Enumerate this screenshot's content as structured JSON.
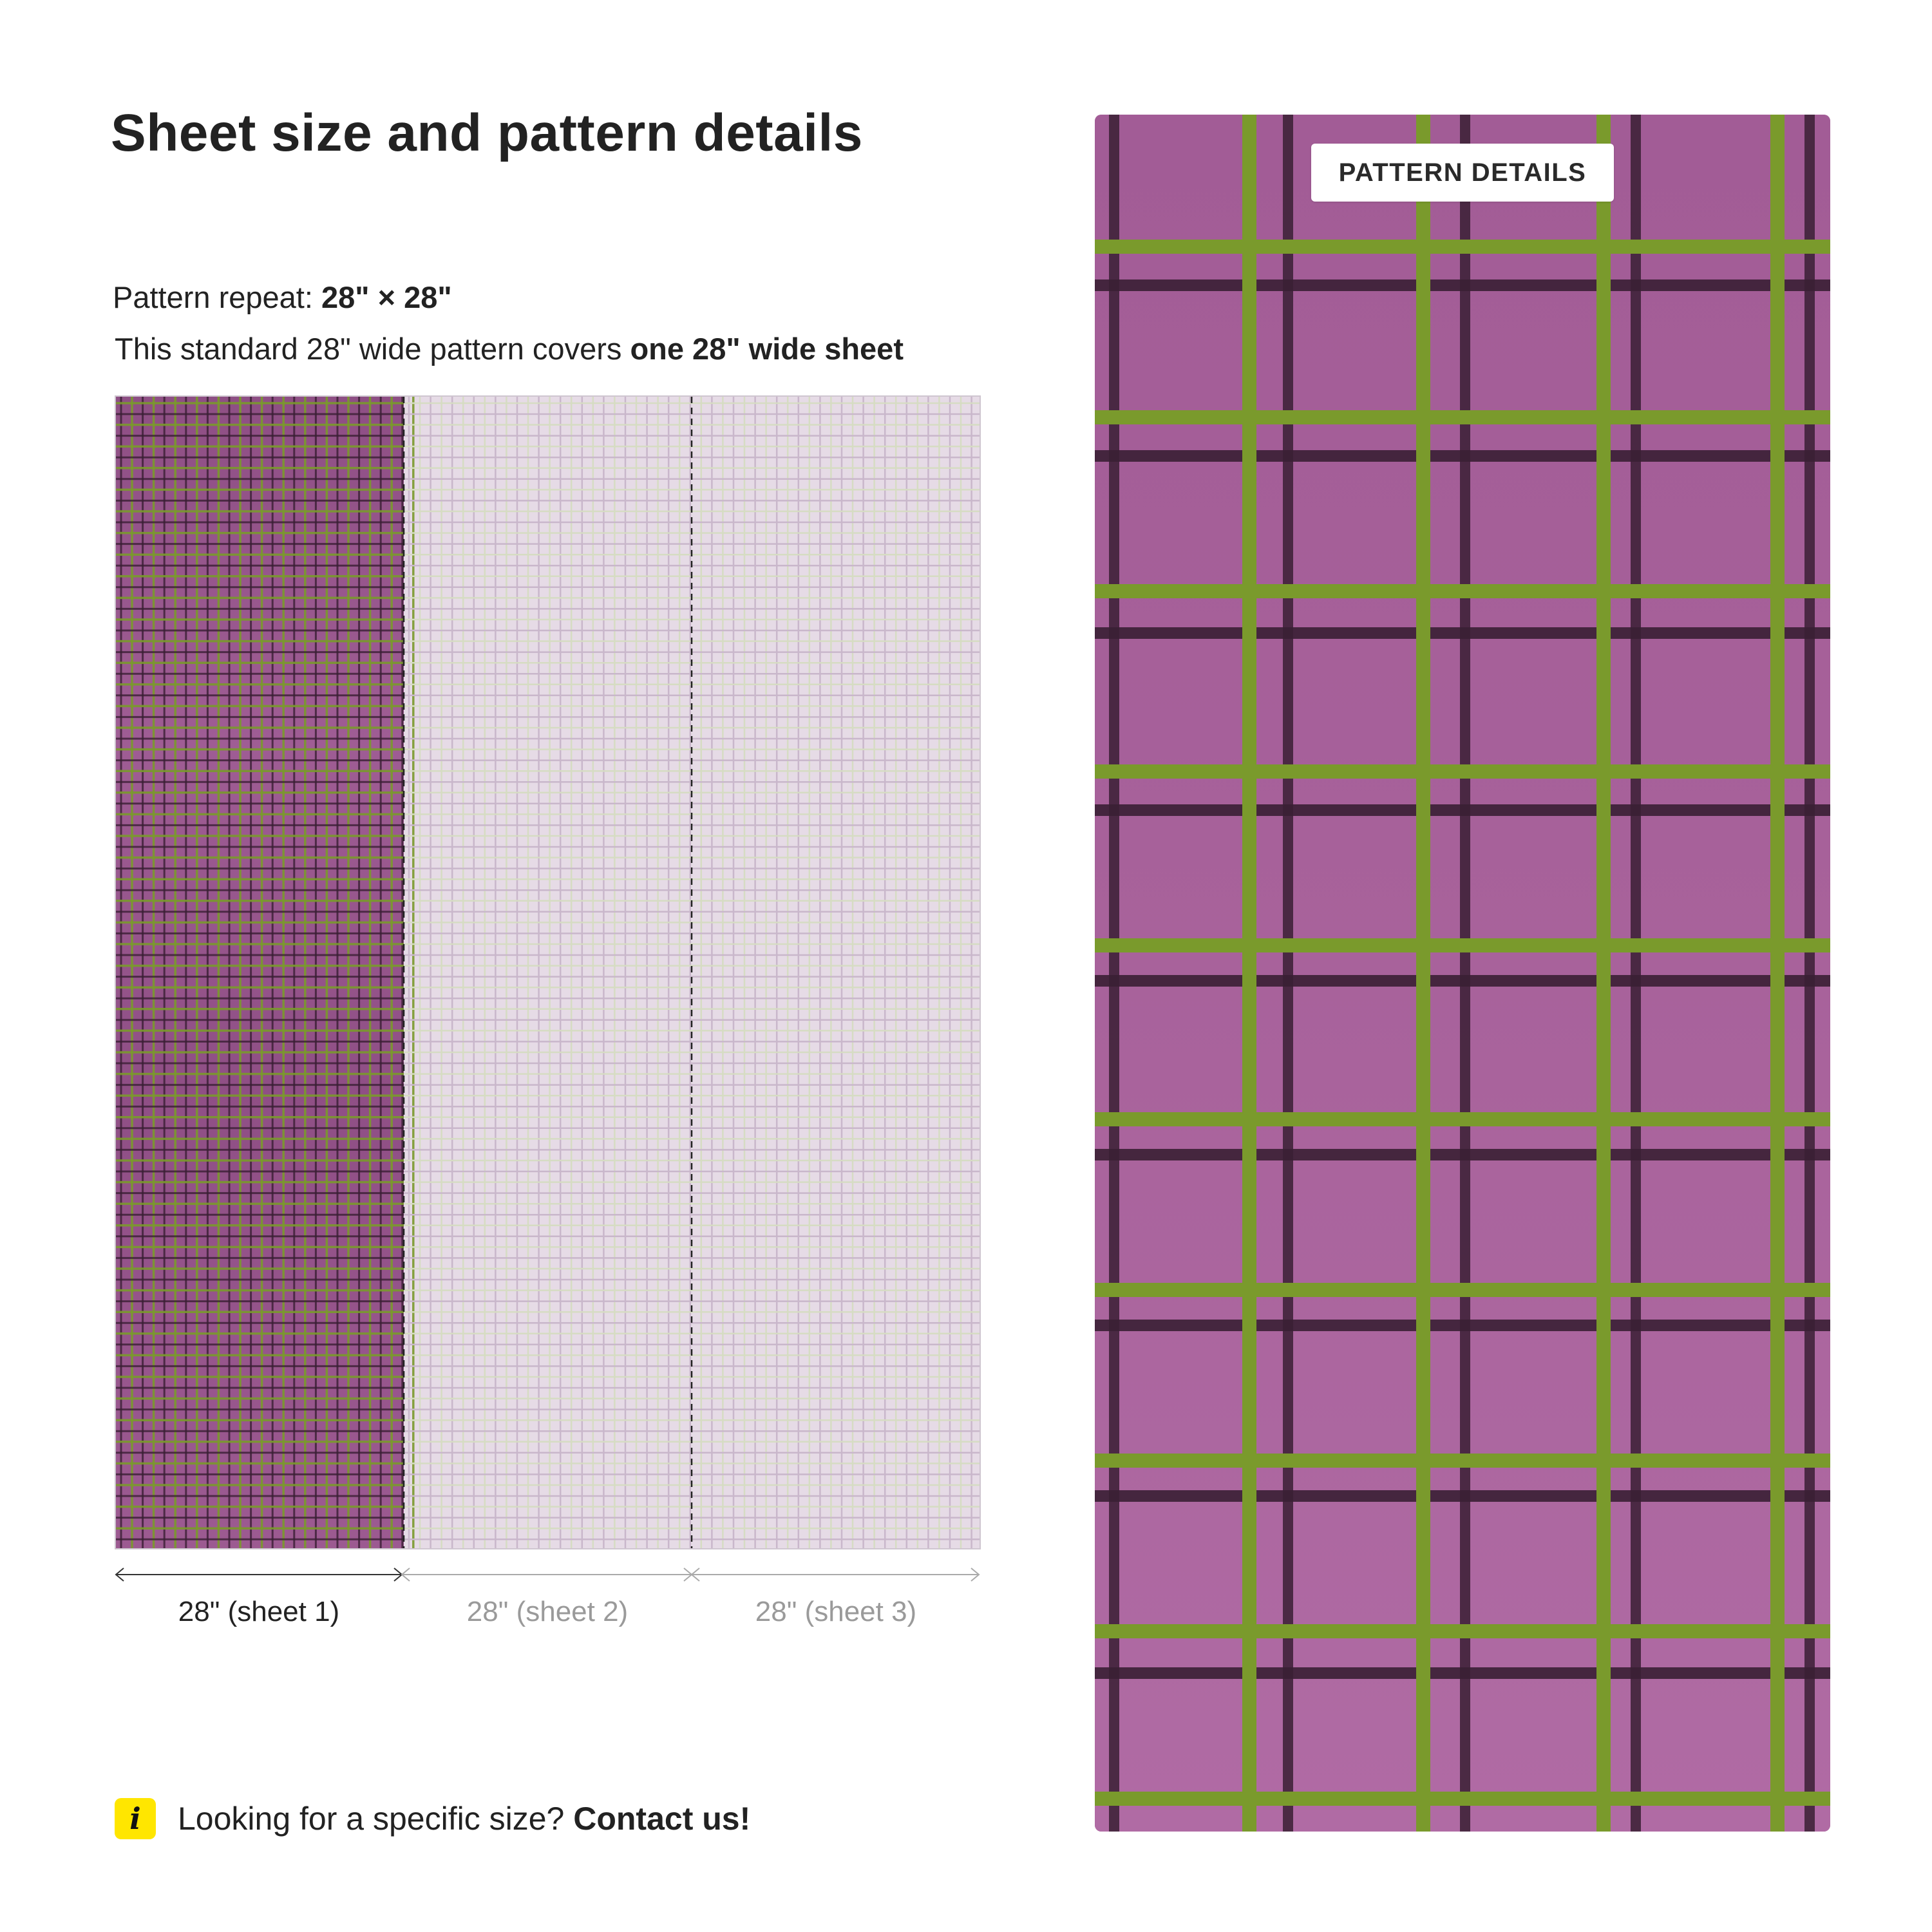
{
  "page": {
    "title": "Sheet size and pattern details"
  },
  "repeat": {
    "label": "Pattern repeat:",
    "value": "28\" × 28\""
  },
  "coverage": {
    "text": "This standard 28\" wide pattern covers",
    "emphasis": "one 28\" wide sheet"
  },
  "sheets": [
    {
      "label": "28\" (sheet 1)",
      "active": true
    },
    {
      "label": "28\" (sheet 2)",
      "active": false
    },
    {
      "label": "28\" (sheet 3)",
      "active": false
    }
  ],
  "info": {
    "icon": "info-icon",
    "glyph": "i",
    "text": "Looking for a specific size?",
    "link": "Contact us!"
  },
  "detail": {
    "badge": "PATTERN DETAILS"
  },
  "colors": {
    "base": "#a7619a",
    "base_light": "#b36aa5",
    "green": "#7a9a2c",
    "dark_stripe": "#3a1f34",
    "faded_base": "#e6dbe6",
    "icon_bg": "#ffe600"
  }
}
